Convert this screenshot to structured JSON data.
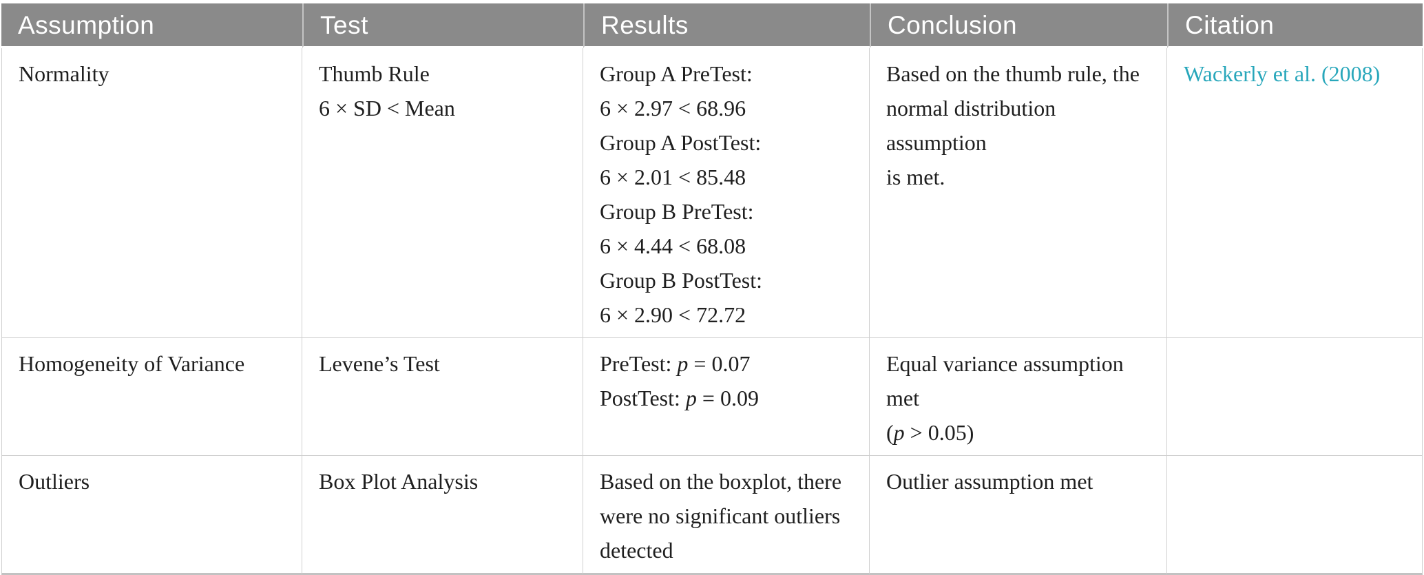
{
  "colors": {
    "header_bg": "#8a8a8a",
    "header_text": "#ffffff",
    "body_text": "#1f1f1f",
    "border": "#cfcfcf",
    "bottom_border": "#c2c2c2",
    "link": "#28a7bb"
  },
  "table": {
    "columns": [
      "Assumption",
      "Test",
      "Results",
      "Conclusion",
      "Citation"
    ],
    "rows": [
      {
        "assumption": "Normality",
        "test_lines": [
          "Thumb Rule",
          "6 × SD < Mean"
        ],
        "results_lines": [
          "Group A PreTest:",
          "6 × 2.97 < 68.96",
          "Group A PostTest:",
          "6 × 2.01 < 85.48",
          "Group B PreTest:",
          "6 × 4.44 < 68.08",
          "Group B PostTest:",
          "6 × 2.90 < 72.72"
        ],
        "conclusion_lines": [
          "Based on the thumb rule, the",
          "normal distribution assumption",
          "is met."
        ],
        "citation": "Wackerly et al. (2008)"
      },
      {
        "assumption": "Homogeneity of Variance",
        "test_lines": [
          "Levene’s Test"
        ],
        "results_rich": [
          {
            "pre": "PreTest: ",
            "it": "p",
            "post": " = 0.07"
          },
          {
            "pre": "PostTest: ",
            "it": "p",
            "post": " = 0.09"
          }
        ],
        "conclusion_line1": "Equal variance assumption met",
        "conclusion_line2": {
          "pre": "(",
          "it": "p",
          "post": " > 0.05)"
        }
      },
      {
        "assumption": "Outliers",
        "test_lines": [
          "Box Plot Analysis"
        ],
        "results_lines": [
          "Based on the boxplot, there",
          "were no significant outliers",
          "detected"
        ],
        "conclusion_lines": [
          "Outlier assumption met"
        ]
      }
    ]
  }
}
